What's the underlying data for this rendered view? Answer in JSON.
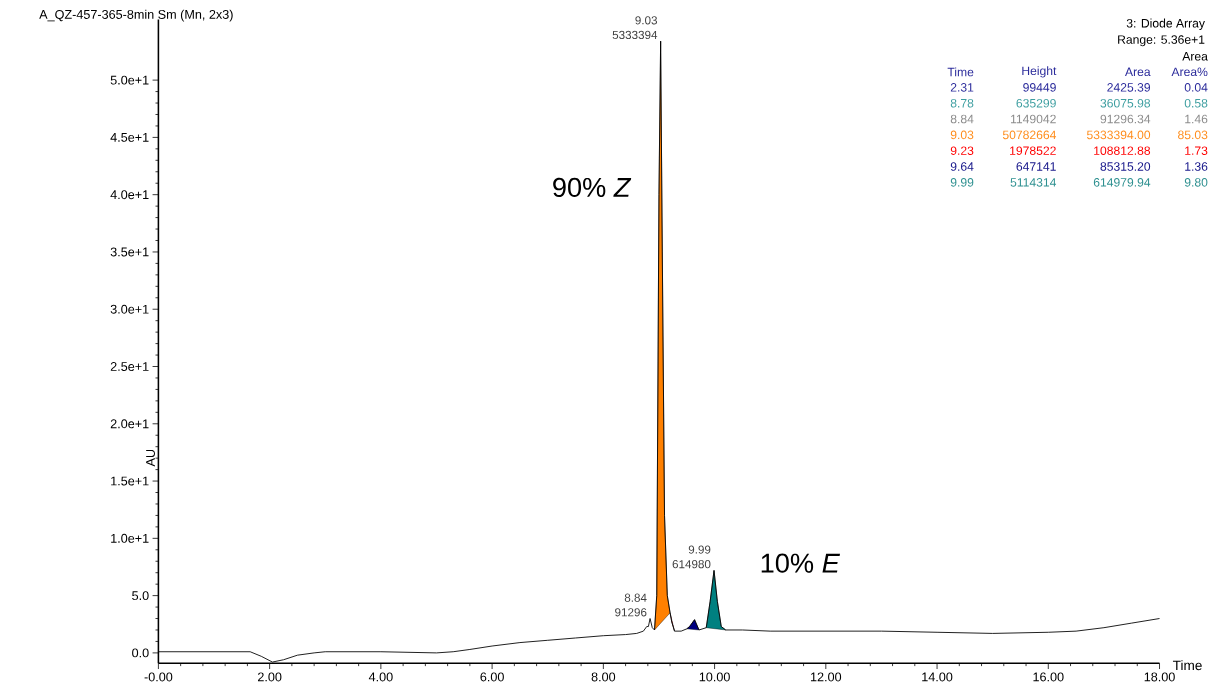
{
  "chart_data": {
    "type": "line",
    "title": "A_QZ-457-365-8min Sm (Mn, 2x3)",
    "xlabel": "Time",
    "ylabel": "AU",
    "xlim": [
      0,
      18
    ],
    "ylim": [
      -0.9,
      55.3
    ],
    "xticks": [
      {
        "value": 0,
        "label": "-0.00"
      },
      {
        "value": 2,
        "label": "2.00"
      },
      {
        "value": 4,
        "label": "4.00"
      },
      {
        "value": 6,
        "label": "6.00"
      },
      {
        "value": 8,
        "label": "8.00"
      },
      {
        "value": 10,
        "label": "10.00"
      },
      {
        "value": 12,
        "label": "12.00"
      },
      {
        "value": 14,
        "label": "14.00"
      },
      {
        "value": 16,
        "label": "16.00"
      },
      {
        "value": 18,
        "label": "18.00"
      }
    ],
    "yticks": [
      {
        "value": 0,
        "label": "0.0"
      },
      {
        "value": 5,
        "label": "5.0"
      },
      {
        "value": 10,
        "label": "1.0e+1"
      },
      {
        "value": 15,
        "label": "1.5e+1"
      },
      {
        "value": 20,
        "label": "2.0e+1"
      },
      {
        "value": 25,
        "label": "2.5e+1"
      },
      {
        "value": 30,
        "label": "3.0e+1"
      },
      {
        "value": 35,
        "label": "3.5e+1"
      },
      {
        "value": 40,
        "label": "4.0e+1"
      },
      {
        "value": 45,
        "label": "4.5e+1"
      },
      {
        "value": 50,
        "label": "5.0e+1"
      }
    ],
    "series": [
      {
        "color": "#000000",
        "x": [
          0,
          0.5,
          1.0,
          1.5,
          1.65,
          1.85,
          2.05,
          2.25,
          2.5,
          2.8,
          3.0,
          4.0,
          5.0,
          5.3,
          5.6,
          6.0,
          6.5,
          7.0,
          7.5,
          8.0,
          8.4,
          8.6,
          8.72,
          8.78,
          8.81,
          8.84,
          8.88,
          8.92,
          8.96,
          9.0,
          9.03,
          9.06,
          9.1,
          9.15,
          9.2,
          9.23,
          9.28,
          9.4,
          9.5,
          9.55,
          9.64,
          9.72,
          9.85,
          9.92,
          9.99,
          10.05,
          10.12,
          10.2,
          10.5,
          11.0,
          12.0,
          12.5,
          13.0,
          14.0,
          15.0,
          16.0,
          16.5,
          17.0,
          17.5,
          18.0
        ],
        "values": [
          0.1,
          0.1,
          0.1,
          0.1,
          0.1,
          -0.3,
          -0.8,
          -0.6,
          -0.2,
          0.0,
          0.1,
          0.1,
          0.0,
          0.1,
          0.3,
          0.6,
          0.9,
          1.1,
          1.3,
          1.5,
          1.6,
          1.7,
          1.9,
          2.3,
          2.3,
          3.0,
          2.2,
          2.0,
          5.0,
          40.0,
          53.4,
          35.0,
          12.0,
          5.0,
          3.5,
          2.7,
          1.9,
          1.9,
          2.1,
          2.3,
          2.9,
          2.0,
          2.2,
          4.5,
          7.2,
          4.5,
          2.3,
          2.0,
          2.0,
          1.9,
          1.9,
          1.9,
          1.9,
          1.8,
          1.7,
          1.8,
          1.9,
          2.2,
          2.6,
          3.0
        ]
      },
      {
        "type": "area",
        "color": "#ff8000",
        "x": [
          8.92,
          8.96,
          9.0,
          9.03,
          9.06,
          9.1,
          9.15,
          9.2
        ],
        "values": [
          2.0,
          5.0,
          40.0,
          53.4,
          35.0,
          12.0,
          5.0,
          3.5
        ]
      },
      {
        "type": "area",
        "color": "#ff0000",
        "x": [
          9.2,
          9.23,
          9.28
        ],
        "values": [
          3.5,
          2.7,
          1.9
        ]
      },
      {
        "type": "area",
        "color": "#000080",
        "x": [
          9.5,
          9.55,
          9.64,
          9.72
        ],
        "values": [
          2.1,
          2.3,
          2.9,
          2.0
        ]
      },
      {
        "type": "area",
        "color": "#008080",
        "x": [
          9.85,
          9.92,
          9.99,
          10.05,
          10.12,
          10.2
        ],
        "values": [
          2.2,
          4.5,
          7.2,
          4.5,
          2.3,
          2.0
        ]
      }
    ],
    "annotations": [
      "3: Diode Array",
      "Range: 5.36e+1",
      "Area",
      "Time",
      "Height",
      "Area",
      "Area%",
      "2.31",
      "99449",
      "2425.39",
      "0.04",
      "8.78",
      "635299",
      "36075.98",
      "0.58",
      "8.84",
      "1149042",
      "91296.34",
      "1.46",
      "9.03",
      "50782664",
      "5333394.00",
      "85.03",
      "9.23",
      "1978522",
      "108812.88",
      "1.73",
      "9.64",
      "647141",
      "85315.20",
      "1.36",
      "9.99",
      "5114314",
      "614979.94",
      "9.80",
      "90% *Z*",
      "10% *E*",
      {
        "text": "9.03",
        "x": 9.03,
        "y": 53.4
      },
      {
        "text": "5333394",
        "x": 9.03,
        "y": 53.4
      },
      {
        "text": "8.84",
        "x": 8.84,
        "y": 3.0
      },
      {
        "text": "91296",
        "x": 8.84,
        "y": 3.0
      },
      {
        "text": "9.99",
        "x": 9.99,
        "y": 7.2
      },
      {
        "text": "614980",
        "x": 9.99,
        "y": 7.2
      }
    ]
  }
}
